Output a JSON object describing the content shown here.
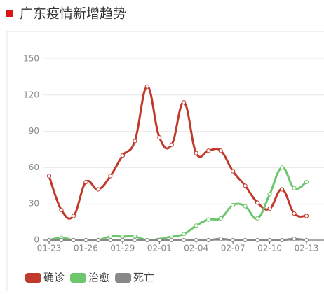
{
  "chart_data": {
    "type": "line",
    "title": "广东疫情新增趋势",
    "title_marker_color": "#d9141b",
    "categories": [
      "01-23",
      null,
      null,
      "01-26",
      null,
      null,
      "01-29",
      null,
      null,
      "02-01",
      null,
      null,
      "02-04",
      null,
      null,
      "02-07",
      null,
      null,
      "02-10",
      null,
      null,
      "02-13"
    ],
    "series": [
      {
        "name": "确诊",
        "color": "#c0392b",
        "values": [
          53,
          25,
          20,
          48,
          42,
          53,
          70,
          82,
          127,
          85,
          79,
          114,
          72,
          74,
          74,
          57,
          45,
          31,
          26,
          42,
          22,
          20
        ]
      },
      {
        "name": "治愈",
        "color": "#6cc66c",
        "values": [
          0,
          2,
          0,
          0,
          0,
          3,
          3,
          3,
          0,
          1,
          3,
          5,
          12,
          17,
          18,
          29,
          28,
          18,
          38,
          60,
          43,
          48
        ]
      },
      {
        "name": "死亡",
        "color": "#888888",
        "values": [
          0,
          0,
          0,
          0,
          0,
          0,
          0,
          0,
          0,
          0,
          0,
          0,
          0,
          0,
          1,
          0,
          0,
          0,
          0,
          0,
          1,
          0
        ]
      }
    ],
    "ylim": [
      0,
      150
    ],
    "yticks": [
      0,
      30,
      60,
      90,
      120,
      150
    ],
    "grid": true,
    "smooth": true,
    "legend": "bottom-left"
  }
}
